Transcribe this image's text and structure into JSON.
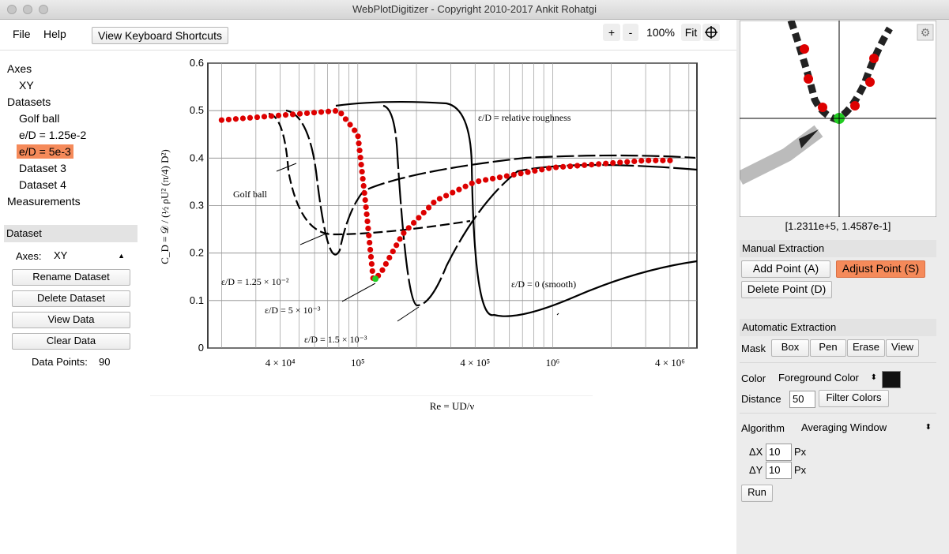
{
  "window": {
    "title": "WebPlotDigitizer - Copyright 2010-2017 Ankit Rohatgi"
  },
  "menu": {
    "file": "File",
    "help": "Help",
    "shortcuts": "View Keyboard Shortcuts"
  },
  "zoom": {
    "plus": "+",
    "minus": "-",
    "level": "100%",
    "fit": "Fit"
  },
  "tree": {
    "axes_label": "Axes",
    "axes_items": [
      "XY"
    ],
    "datasets_label": "Datasets",
    "datasets": [
      "Golf ball",
      "e/D = 1.25e-2",
      "e/D = 5e-3",
      "Dataset 3",
      "Dataset 4"
    ],
    "selected_dataset": "e/D = 5e-3",
    "measurements_label": "Measurements"
  },
  "dataset_panel": {
    "header": "Dataset",
    "axes_label": "Axes:",
    "axes_value": "XY",
    "rename": "Rename Dataset",
    "delete": "Delete Dataset",
    "view": "View Data",
    "clear": "Clear Data",
    "points_label": "Data Points:",
    "points_count": "90"
  },
  "magnifier": {
    "coords": "[1.2311e+5, 1.4587e-1]"
  },
  "manual": {
    "header": "Manual Extraction",
    "add": "Add Point (A)",
    "adjust": "Adjust Point (S)",
    "delete": "Delete Point (D)"
  },
  "automatic": {
    "header": "Automatic Extraction",
    "mask_label": "Mask",
    "mask_box": "Box",
    "mask_pen": "Pen",
    "mask_erase": "Erase",
    "mask_view": "View",
    "color_label": "Color",
    "color_value": "Foreground Color",
    "color_swatch": "#111111",
    "distance_label": "Distance",
    "distance_value": "50",
    "filter": "Filter Colors",
    "algorithm_label": "Algorithm",
    "algorithm_value": "Averaging Window",
    "dx_label": "ΔX",
    "dx_value": "10",
    "dx_unit": "Px",
    "dy_label": "ΔY",
    "dy_value": "10",
    "dy_unit": "Px",
    "run": "Run"
  },
  "colors": {
    "accent": "#f58a5a",
    "point": "#dd0000",
    "active_point": "#22cc22"
  },
  "chart_data": {
    "type": "line",
    "x_scale": "log",
    "ylim": [
      0,
      0.6
    ],
    "y_ticks": [
      "0",
      "0.1",
      "0.2",
      "0.3",
      "0.4",
      "0.5",
      "0.6"
    ],
    "x_ticks": [
      "4 × 10⁴",
      "10⁵",
      "4 × 10⁵",
      "10⁶",
      "4 × 10⁶"
    ],
    "ylabel": "C_D = 𝒟 / (½ ρU² (π/4) D²)",
    "xlabel": "Re = UD/ν",
    "annotations": [
      "ε/D = relative roughness",
      "Golf ball",
      "ε/D = 1.25 × 10⁻²",
      "ε/D = 5 × 10⁻³",
      "ε/D = 1.5 × 10⁻³",
      "ε/D = 0 (smooth)"
    ],
    "series": [
      {
        "values": [
          [
            20000,
            0.48
          ],
          [
            40000,
            0.49
          ],
          [
            80000,
            0.5
          ],
          [
            100000,
            0.45
          ],
          [
            110000,
            0.3
          ],
          [
            120000,
            0.145
          ],
          [
            130000,
            0.155
          ],
          [
            170000,
            0.24
          ],
          [
            250000,
            0.31
          ],
          [
            400000,
            0.35
          ],
          [
            1000000,
            0.38
          ],
          [
            3000000,
            0.395
          ],
          [
            4000000,
            0.395
          ]
        ]
      }
    ],
    "active_point": [
      123110,
      0.14587
    ]
  }
}
